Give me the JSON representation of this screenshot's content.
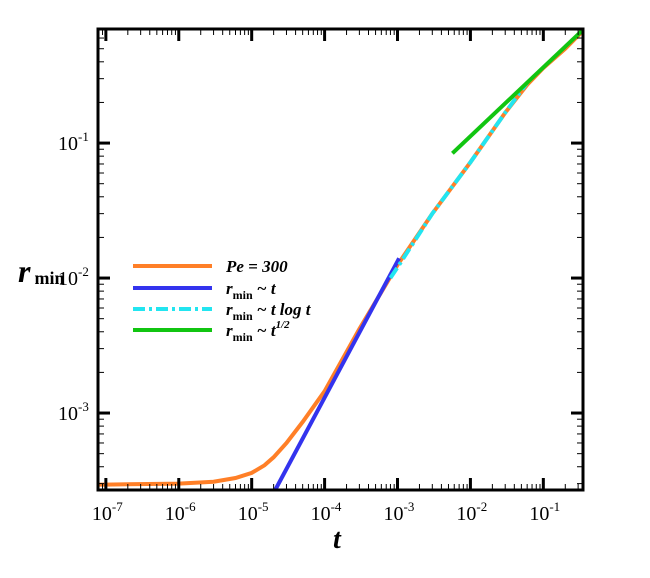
{
  "chart_data": {
    "type": "line",
    "title": "",
    "xlabel": "t",
    "ylabel": "r",
    "ylabel_sub": "min",
    "xscale": "log",
    "yscale": "log",
    "xlim": [
      7.8e-08,
      0.35
    ],
    "ylim": [
      0.000269,
      0.7
    ],
    "x_ticks": [
      {
        "base": "10",
        "exp": "-7",
        "value": 1e-07
      },
      {
        "base": "10",
        "exp": "-6",
        "value": 1e-06
      },
      {
        "base": "10",
        "exp": "-5",
        "value": 1e-05
      },
      {
        "base": "10",
        "exp": "-4",
        "value": 0.0001
      },
      {
        "base": "10",
        "exp": "-3",
        "value": 0.001
      },
      {
        "base": "10",
        "exp": "-2",
        "value": 0.01
      },
      {
        "base": "10",
        "exp": "-1",
        "value": 0.1
      }
    ],
    "y_ticks": [
      {
        "base": "10",
        "exp": "-3",
        "value": 0.001
      },
      {
        "base": "10",
        "exp": "-2",
        "value": 0.01
      },
      {
        "base": "10",
        "exp": "-1",
        "value": 0.1
      }
    ],
    "grid": false,
    "legend_position": "center-left",
    "series": [
      {
        "name": "Pe = 300",
        "label_main": "Pe = 300",
        "color": "#ff7f27",
        "dash": "solid",
        "x": [
          7.8e-08,
          1e-07,
          1e-06,
          3e-06,
          6e-06,
          1e-05,
          1.5e-05,
          2e-05,
          3e-05,
          5e-05,
          0.0001,
          0.0003,
          0.001,
          0.003,
          0.01,
          0.03,
          0.06,
          0.1,
          0.2,
          0.35
        ],
        "y": [
          0.000295,
          0.000295,
          0.0003,
          0.00031,
          0.00033,
          0.00036,
          0.00041,
          0.00047,
          0.0006,
          0.00086,
          0.00145,
          0.0042,
          0.0125,
          0.03,
          0.072,
          0.168,
          0.27,
          0.36,
          0.5,
          0.68
        ]
      },
      {
        "name": "r_min ~ t",
        "label_main": "r",
        "label_sub": "min",
        "label_rest": " ~ t",
        "color": "#3333ee",
        "dash": "solid",
        "x": [
          2.1e-05,
          0.00105
        ],
        "y": [
          0.000269,
          0.014
        ]
      },
      {
        "name": "r_min ~ t log t",
        "label_main": "r",
        "label_sub": "min",
        "label_rest": " ~ t log t",
        "color": "#22e5f0",
        "dash": "dashdot",
        "x": [
          0.0008,
          0.001,
          0.003,
          0.01,
          0.03,
          0.06
        ],
        "y": [
          0.01,
          0.012,
          0.03,
          0.072,
          0.168,
          0.28
        ]
      },
      {
        "name": "r_min ~ t^1/2",
        "label_main": "r",
        "label_sub": "min",
        "label_rest": " ~ t",
        "label_sup": "1/2",
        "color": "#11c511",
        "dash": "solid",
        "x": [
          0.00566,
          0.35
        ],
        "y": [
          0.084,
          0.69
        ]
      }
    ]
  }
}
